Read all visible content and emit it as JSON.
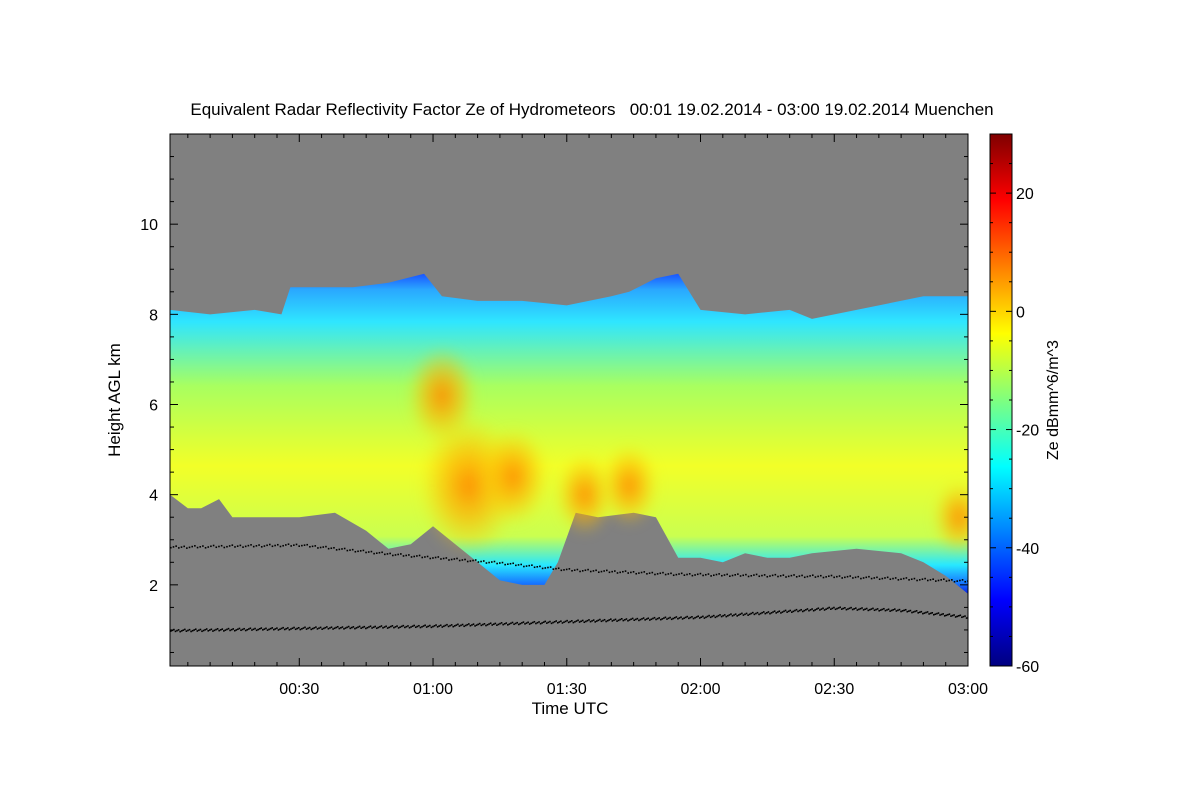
{
  "chart_data": {
    "type": "heatmap",
    "title": "Equivalent Radar Reflectivity Factor Ze of Hydrometeors   00:01 19.02.2014 - 03:00 19.02.2014 Muenchen",
    "xlabel": "Time UTC",
    "ylabel": "Height AGL km",
    "colorbar_label": "Ze dBmm^6/m^3",
    "x_ticks": [
      {
        "minute": 30,
        "label": "00:30"
      },
      {
        "minute": 60,
        "label": "01:00"
      },
      {
        "minute": 90,
        "label": "01:30"
      },
      {
        "minute": 120,
        "label": "02:00"
      },
      {
        "minute": 150,
        "label": "02:30"
      },
      {
        "minute": 180,
        "label": "03:00"
      }
    ],
    "xlim_minutes": [
      1,
      180
    ],
    "y_ticks": [
      {
        "value": 2,
        "label": "2"
      },
      {
        "value": 4,
        "label": "4"
      },
      {
        "value": 6,
        "label": "6"
      },
      {
        "value": 8,
        "label": "8"
      },
      {
        "value": 10,
        "label": "10"
      }
    ],
    "ylim_km": [
      0.2,
      12.0
    ],
    "colorbar_ticks": [
      {
        "value": -60,
        "label": "-60"
      },
      {
        "value": -40,
        "label": "-40"
      },
      {
        "value": -20,
        "label": "-20"
      },
      {
        "value": 0,
        "label": "0"
      },
      {
        "value": 20,
        "label": "20"
      }
    ],
    "colorbar_range": [
      -60,
      30
    ],
    "background_color": "#808080",
    "colormap": [
      "#00007f",
      "#0000ff",
      "#007fff",
      "#00ffff",
      "#7fff7f",
      "#ffff00",
      "#ff7f00",
      "#ff0000",
      "#7f0000"
    ],
    "echo_top_km": [
      [
        1,
        8.1
      ],
      [
        10,
        8.0
      ],
      [
        20,
        8.1
      ],
      [
        26,
        8.0
      ],
      [
        28,
        8.6
      ],
      [
        35,
        8.6
      ],
      [
        42,
        8.6
      ],
      [
        50,
        8.7
      ],
      [
        58,
        8.9
      ],
      [
        62,
        8.4
      ],
      [
        70,
        8.3
      ],
      [
        80,
        8.3
      ],
      [
        90,
        8.2
      ],
      [
        100,
        8.4
      ],
      [
        104,
        8.5
      ],
      [
        110,
        8.8
      ],
      [
        115,
        8.9
      ],
      [
        120,
        8.1
      ],
      [
        130,
        8.0
      ],
      [
        140,
        8.1
      ],
      [
        145,
        7.9
      ],
      [
        150,
        8.0
      ],
      [
        160,
        8.2
      ],
      [
        170,
        8.4
      ],
      [
        178,
        8.4
      ],
      [
        180,
        8.4
      ]
    ],
    "echo_base_km": [
      [
        1,
        4.0
      ],
      [
        5,
        3.7
      ],
      [
        8,
        3.7
      ],
      [
        12,
        3.9
      ],
      [
        15,
        3.5
      ],
      [
        20,
        3.5
      ],
      [
        25,
        3.5
      ],
      [
        30,
        3.5
      ],
      [
        38,
        3.6
      ],
      [
        45,
        3.2
      ],
      [
        50,
        2.8
      ],
      [
        55,
        2.9
      ],
      [
        60,
        3.3
      ],
      [
        65,
        2.9
      ],
      [
        70,
        2.5
      ],
      [
        75,
        2.1
      ],
      [
        80,
        2.0
      ],
      [
        85,
        2.0
      ],
      [
        88,
        2.5
      ],
      [
        92,
        3.6
      ],
      [
        97,
        3.5
      ],
      [
        105,
        3.6
      ],
      [
        110,
        3.5
      ],
      [
        115,
        2.6
      ],
      [
        120,
        2.6
      ],
      [
        125,
        2.5
      ],
      [
        130,
        2.7
      ],
      [
        135,
        2.6
      ],
      [
        140,
        2.6
      ],
      [
        145,
        2.7
      ],
      [
        155,
        2.8
      ],
      [
        165,
        2.7
      ],
      [
        170,
        2.5
      ],
      [
        175,
        2.2
      ],
      [
        180,
        1.8
      ]
    ],
    "reflectivity_maxima": [
      {
        "t_minute": 68,
        "h_km": 4.2,
        "ze_dbz": 10
      },
      {
        "t_minute": 62,
        "h_km": 6.2,
        "ze_dbz": 5
      },
      {
        "t_minute": 78,
        "h_km": 4.4,
        "ze_dbz": 5
      },
      {
        "t_minute": 94,
        "h_km": 4.0,
        "ze_dbz": 3
      },
      {
        "t_minute": 104,
        "h_km": 4.2,
        "ze_dbz": 3
      },
      {
        "t_minute": 178,
        "h_km": 3.5,
        "ze_dbz": 2
      }
    ],
    "upper_dotted_layer_km": [
      [
        1,
        2.85
      ],
      [
        30,
        2.9
      ],
      [
        50,
        2.7
      ],
      [
        75,
        2.5
      ],
      [
        90,
        2.35
      ],
      [
        115,
        2.25
      ],
      [
        150,
        2.2
      ],
      [
        180,
        2.1
      ]
    ],
    "lower_dotted_layer_km": [
      [
        1,
        1.0
      ],
      [
        30,
        1.05
      ],
      [
        60,
        1.1
      ],
      [
        90,
        1.2
      ],
      [
        120,
        1.3
      ],
      [
        150,
        1.5
      ],
      [
        165,
        1.45
      ],
      [
        180,
        1.3
      ]
    ]
  }
}
